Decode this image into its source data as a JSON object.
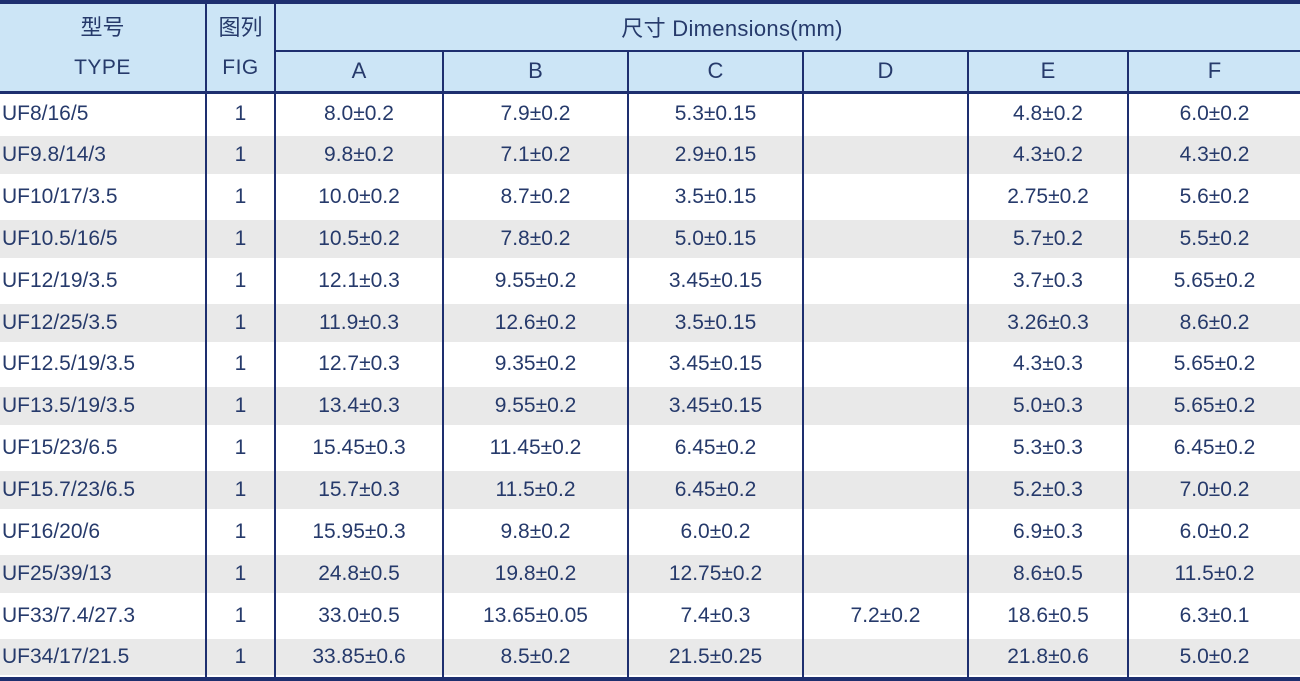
{
  "table": {
    "header": {
      "type_zh": "型号",
      "type_en": "TYPE",
      "fig_zh": "图列",
      "fig_en": "FIG",
      "dimensions_title": "尺寸 Dimensions(mm)",
      "dim_columns": [
        "A",
        "B",
        "C",
        "D",
        "E",
        "F"
      ]
    },
    "rows": [
      {
        "type": "UF8/16/5",
        "fig": "1",
        "a": "8.0±0.2",
        "b": "7.9±0.2",
        "c": "5.3±0.15",
        "d": "",
        "e": "4.8±0.2",
        "f": "6.0±0.2"
      },
      {
        "type": "UF9.8/14/3",
        "fig": "1",
        "a": "9.8±0.2",
        "b": "7.1±0.2",
        "c": "2.9±0.15",
        "d": "",
        "e": "4.3±0.2",
        "f": "4.3±0.2"
      },
      {
        "type": "UF10/17/3.5",
        "fig": "1",
        "a": "10.0±0.2",
        "b": "8.7±0.2",
        "c": "3.5±0.15",
        "d": "",
        "e": "2.75±0.2",
        "f": "5.6±0.2"
      },
      {
        "type": "UF10.5/16/5",
        "fig": "1",
        "a": "10.5±0.2",
        "b": "7.8±0.2",
        "c": "5.0±0.15",
        "d": "",
        "e": "5.7±0.2",
        "f": "5.5±0.2"
      },
      {
        "type": "UF12/19/3.5",
        "fig": "1",
        "a": "12.1±0.3",
        "b": "9.55±0.2",
        "c": "3.45±0.15",
        "d": "",
        "e": "3.7±0.3",
        "f": "5.65±0.2"
      },
      {
        "type": "UF12/25/3.5",
        "fig": "1",
        "a": "11.9±0.3",
        "b": "12.6±0.2",
        "c": "3.5±0.15",
        "d": "",
        "e": "3.26±0.3",
        "f": "8.6±0.2"
      },
      {
        "type": "UF12.5/19/3.5",
        "fig": "1",
        "a": "12.7±0.3",
        "b": "9.35±0.2",
        "c": "3.45±0.15",
        "d": "",
        "e": "4.3±0.3",
        "f": "5.65±0.2"
      },
      {
        "type": "UF13.5/19/3.5",
        "fig": "1",
        "a": "13.4±0.3",
        "b": "9.55±0.2",
        "c": "3.45±0.15",
        "d": "",
        "e": "5.0±0.3",
        "f": "5.65±0.2"
      },
      {
        "type": "UF15/23/6.5",
        "fig": "1",
        "a": "15.45±0.3",
        "b": "11.45±0.2",
        "c": "6.45±0.2",
        "d": "",
        "e": "5.3±0.3",
        "f": "6.45±0.2"
      },
      {
        "type": "UF15.7/23/6.5",
        "fig": "1",
        "a": "15.7±0.3",
        "b": "11.5±0.2",
        "c": "6.45±0.2",
        "d": "",
        "e": "5.2±0.3",
        "f": "7.0±0.2"
      },
      {
        "type": "UF16/20/6",
        "fig": "1",
        "a": "15.95±0.3",
        "b": "9.8±0.2",
        "c": "6.0±0.2",
        "d": "",
        "e": "6.9±0.3",
        "f": "6.0±0.2"
      },
      {
        "type": "UF25/39/13",
        "fig": "1",
        "a": "24.8±0.5",
        "b": "19.8±0.2",
        "c": "12.75±0.2",
        "d": "",
        "e": "8.6±0.5",
        "f": "11.5±0.2"
      },
      {
        "type": "UF33/7.4/27.3",
        "fig": "1",
        "a": "33.0±0.5",
        "b": "13.65±0.05",
        "c": "7.4±0.3",
        "d": "7.2±0.2",
        "e": "18.6±0.5",
        "f": "6.3±0.1"
      },
      {
        "type": "UF34/17/21.5",
        "fig": "1",
        "a": "33.85±0.6",
        "b": "8.5±0.2",
        "c": "21.5±0.25",
        "d": "",
        "e": "21.8±0.6",
        "f": "5.0±0.2"
      }
    ],
    "colors": {
      "header_bg": "#cce5f6",
      "border_navy": "#1e2f6f",
      "text_navy": "#263a6b",
      "row_alt_bg": "#e9e9e9"
    }
  }
}
